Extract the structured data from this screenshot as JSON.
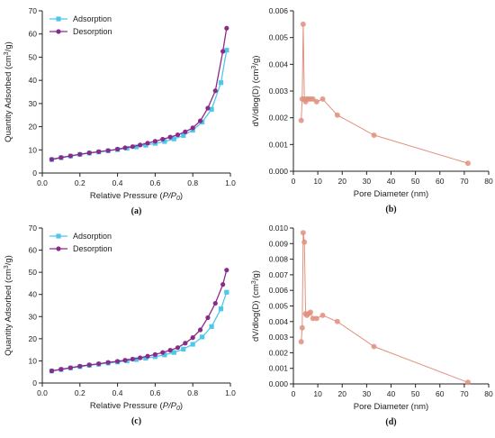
{
  "colors": {
    "adsorption": "#4ec8ea",
    "desorption": "#8a2a8a",
    "pore": "#e0917f",
    "axis": "#222222"
  },
  "chart_data": [
    {
      "type": "line",
      "panel": "(a)",
      "title": "",
      "xlabel_parts": [
        "Relative Pressure (",
        "P/P",
        "0",
        ")"
      ],
      "ylabel_parts": [
        "Quantity Adsorbed (cm",
        "3",
        "/g)"
      ],
      "xlim": [
        0,
        1.0
      ],
      "ylim": [
        0,
        70
      ],
      "xticks": [
        0.0,
        0.2,
        0.4,
        0.6,
        0.8,
        1.0
      ],
      "xtick_labels": [
        "0.0",
        "0.2",
        "0.4",
        "0.6",
        "0.8",
        "1.0"
      ],
      "yticks": [
        0,
        10,
        20,
        30,
        40,
        50,
        60,
        70
      ],
      "ytick_labels": [
        "0",
        "10",
        "20",
        "30",
        "40",
        "50",
        "60",
        "70"
      ],
      "legend_position": "top-left",
      "series": [
        {
          "name": "Adsorption",
          "marker": "square",
          "x": [
            0.05,
            0.1,
            0.15,
            0.2,
            0.25,
            0.3,
            0.35,
            0.4,
            0.45,
            0.5,
            0.55,
            0.6,
            0.65,
            0.7,
            0.75,
            0.8,
            0.85,
            0.9,
            0.95,
            0.98
          ],
          "y": [
            5.8,
            6.6,
            7.3,
            8.0,
            8.6,
            9.1,
            9.6,
            10.1,
            10.7,
            11.3,
            12.0,
            12.8,
            13.6,
            14.7,
            16.2,
            18.5,
            22.0,
            27.5,
            39.0,
            53.0
          ]
        },
        {
          "name": "Desorption",
          "marker": "circle",
          "x": [
            0.98,
            0.96,
            0.92,
            0.88,
            0.84,
            0.8,
            0.76,
            0.72,
            0.68,
            0.64,
            0.6,
            0.56,
            0.52,
            0.48,
            0.44,
            0.4,
            0.35,
            0.3,
            0.25,
            0.2,
            0.15,
            0.1,
            0.05
          ],
          "y": [
            62.5,
            52.5,
            35.5,
            28.0,
            22.5,
            19.5,
            17.8,
            16.5,
            15.5,
            14.6,
            13.7,
            12.9,
            12.1,
            11.4,
            10.9,
            10.3,
            9.7,
            9.2,
            8.7,
            8.1,
            7.4,
            6.7,
            5.9
          ]
        }
      ]
    },
    {
      "type": "line",
      "panel": "(b)",
      "title": "",
      "xlabel": "Pore Diameter (nm)",
      "ylabel_parts": [
        "dV/dlog(D) (cm",
        "3",
        "/g)"
      ],
      "xlim": [
        0,
        80
      ],
      "ylim": [
        0,
        0.006
      ],
      "xticks": [
        0,
        10,
        20,
        30,
        40,
        50,
        60,
        70,
        80
      ],
      "xtick_labels": [
        "0",
        "10",
        "20",
        "30",
        "40",
        "50",
        "60",
        "70",
        "80"
      ],
      "yticks": [
        0,
        0.001,
        0.002,
        0.003,
        0.004,
        0.005,
        0.006
      ],
      "ytick_labels": [
        "0.000",
        "0.001",
        "0.002",
        "0.003",
        "0.004",
        "0.005",
        "0.006"
      ],
      "series": [
        {
          "marker": "circle",
          "x": [
            3.2,
            3.6,
            4.0,
            4.5,
            5.0,
            5.5,
            6.2,
            7.0,
            8.0,
            9.5,
            12.0,
            18.0,
            33.0,
            71.5
          ],
          "y": [
            0.0019,
            0.0027,
            0.0055,
            0.0027,
            0.0026,
            0.0027,
            0.0027,
            0.0027,
            0.0027,
            0.0026,
            0.0027,
            0.0021,
            0.00135,
            0.0003
          ]
        }
      ]
    },
    {
      "type": "line",
      "panel": "(c)",
      "title": "",
      "xlabel_parts": [
        "Relative Pressure (",
        "P/P",
        "0",
        ")"
      ],
      "ylabel_parts": [
        "Quantity Adsorbed (cm",
        "3",
        "/g)"
      ],
      "xlim": [
        0,
        1.0
      ],
      "ylim": [
        0,
        70
      ],
      "xticks": [
        0.0,
        0.2,
        0.4,
        0.6,
        0.8,
        1.0
      ],
      "xtick_labels": [
        "0.0",
        "0.2",
        "0.4",
        "0.6",
        "0.8",
        "1.0"
      ],
      "yticks": [
        0,
        10,
        20,
        30,
        40,
        50,
        60,
        70
      ],
      "ytick_labels": [
        "0",
        "10",
        "20",
        "30",
        "40",
        "50",
        "60",
        "70"
      ],
      "legend_position": "top-left",
      "series": [
        {
          "name": "Adsorption",
          "marker": "square",
          "x": [
            0.05,
            0.1,
            0.15,
            0.2,
            0.25,
            0.3,
            0.35,
            0.4,
            0.45,
            0.5,
            0.55,
            0.6,
            0.65,
            0.7,
            0.75,
            0.8,
            0.85,
            0.9,
            0.95,
            0.98
          ],
          "y": [
            5.4,
            6.1,
            6.8,
            7.4,
            8.0,
            8.5,
            9.0,
            9.5,
            10.0,
            10.6,
            11.2,
            11.9,
            12.7,
            13.8,
            15.3,
            17.5,
            20.8,
            25.5,
            33.5,
            41.0
          ]
        },
        {
          "name": "Desorption",
          "marker": "circle",
          "x": [
            0.98,
            0.96,
            0.92,
            0.88,
            0.84,
            0.8,
            0.76,
            0.72,
            0.68,
            0.64,
            0.6,
            0.56,
            0.52,
            0.48,
            0.44,
            0.4,
            0.35,
            0.3,
            0.25,
            0.2,
            0.15,
            0.1,
            0.05
          ],
          "y": [
            51.0,
            44.5,
            36.0,
            29.5,
            24.0,
            20.5,
            18.0,
            16.0,
            14.8,
            13.8,
            12.9,
            12.1,
            11.4,
            10.8,
            10.3,
            9.8,
            9.3,
            8.7,
            8.2,
            7.6,
            6.9,
            6.2,
            5.5
          ]
        }
      ]
    },
    {
      "type": "line",
      "panel": "(d)",
      "title": "",
      "xlabel": "Pore Diameter (nm)",
      "ylabel_parts": [
        "dV/dlog(D) (cm",
        "3",
        "/g)"
      ],
      "xlim": [
        0,
        80
      ],
      "ylim": [
        0,
        0.01
      ],
      "xticks": [
        0,
        10,
        20,
        30,
        40,
        50,
        60,
        70,
        80
      ],
      "xtick_labels": [
        "0",
        "10",
        "20",
        "30",
        "40",
        "50",
        "60",
        "70",
        "80"
      ],
      "yticks": [
        0,
        0.001,
        0.002,
        0.003,
        0.004,
        0.005,
        0.006,
        0.007,
        0.008,
        0.009,
        0.01
      ],
      "ytick_labels": [
        "0.000",
        "0.001",
        "0.002",
        "0.003",
        "0.004",
        "0.005",
        "0.006",
        "0.007",
        "0.008",
        "0.009",
        "0.010"
      ],
      "series": [
        {
          "marker": "circle",
          "x": [
            3.2,
            3.6,
            4.0,
            4.5,
            5.0,
            5.5,
            6.2,
            7.0,
            8.0,
            9.5,
            12.0,
            18.0,
            33.0,
            71.5
          ],
          "y": [
            0.0027,
            0.0036,
            0.0097,
            0.0091,
            0.0045,
            0.0044,
            0.0045,
            0.0046,
            0.0042,
            0.0042,
            0.0044,
            0.004,
            0.0024,
            0.0001
          ]
        }
      ]
    }
  ]
}
